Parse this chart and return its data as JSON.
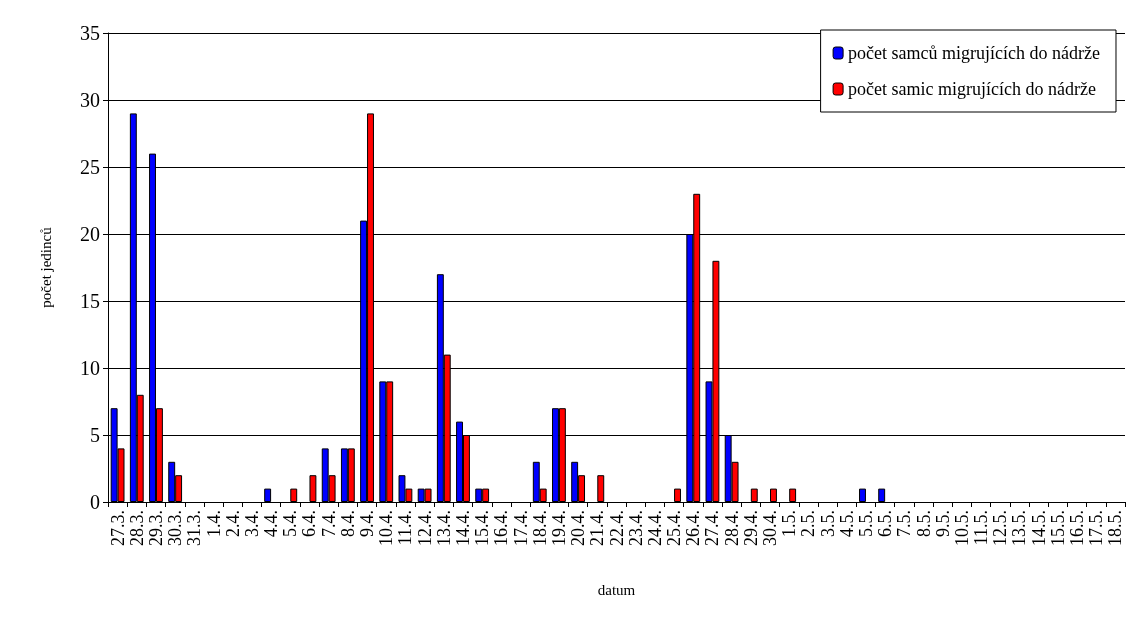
{
  "chart_data": {
    "type": "bar",
    "xlabel": "datum",
    "ylabel": "počet jedinců",
    "categories": [
      "27.3.",
      "28.3.",
      "29.3.",
      "30.3.",
      "31.3.",
      "1.4.",
      "2.4.",
      "3.4.",
      "4.4.",
      "5.4.",
      "6.4.",
      "7.4.",
      "8.4.",
      "9.4.",
      "10.4.",
      "11.4.",
      "12.4.",
      "13.4.",
      "14.4.",
      "15.4.",
      "16.4.",
      "17.4.",
      "18.4.",
      "19.4.",
      "20.4.",
      "21.4.",
      "22.4.",
      "23.4.",
      "24.4.",
      "25.4.",
      "26.4.",
      "27.4.",
      "28.4.",
      "29.4.",
      "30.4.",
      "1.5.",
      "2.5.",
      "3.5.",
      "4.5.",
      "5.5.",
      "6.5.",
      "7.5.",
      "8.5.",
      "9.5.",
      "10.5.",
      "11.5.",
      "12.5.",
      "13.5.",
      "14.5.",
      "15.5.",
      "16.5.",
      "17.5.",
      "18.5."
    ],
    "series": [
      {
        "name": "počet samců migrujících do nádrže",
        "color": "#0000ff",
        "values": [
          7,
          29,
          26,
          3,
          0,
          0,
          0,
          0,
          1,
          0,
          0,
          4,
          4,
          21,
          9,
          2,
          1,
          17,
          6,
          1,
          0,
          0,
          3,
          7,
          3,
          0,
          0,
          0,
          0,
          0,
          20,
          9,
          5,
          0,
          0,
          0,
          0,
          0,
          0,
          1,
          1,
          0,
          0,
          0,
          0,
          0,
          0,
          0,
          0,
          0,
          0,
          0,
          0
        ]
      },
      {
        "name": "počet samic migrujících do nádrže",
        "color": "#ff0000",
        "values": [
          4,
          8,
          7,
          2,
          0,
          0,
          0,
          0,
          0,
          1,
          2,
          2,
          4,
          29,
          9,
          1,
          1,
          11,
          5,
          1,
          0,
          0,
          1,
          7,
          2,
          2,
          0,
          0,
          0,
          1,
          23,
          18,
          3,
          1,
          1,
          1,
          0,
          0,
          0,
          0,
          0,
          0,
          0,
          0,
          0,
          0,
          0,
          0,
          0,
          0,
          0,
          0,
          0
        ]
      }
    ],
    "ylim": [
      0,
      35
    ],
    "yticks": [
      0,
      5,
      10,
      15,
      20,
      25,
      30,
      35
    ],
    "grid": "y",
    "legend": "top right"
  }
}
